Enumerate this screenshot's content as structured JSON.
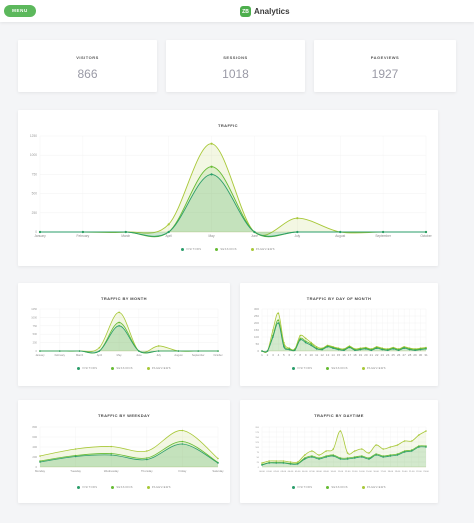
{
  "header": {
    "menu_label": "MENU",
    "logo_text": "ZB",
    "title": "Analytics"
  },
  "stats": [
    {
      "label": "VISITORS",
      "value": "866"
    },
    {
      "label": "SESSIONS",
      "value": "1018"
    },
    {
      "label": "PAGEVIEWS",
      "value": "1927"
    }
  ],
  "colors": {
    "visitors": "#2a9d6a",
    "sessions": "#66bb33",
    "pageviews": "#a8c838",
    "accent": "#5cb85c"
  },
  "legend": [
    "VISITORS",
    "SESSIONS",
    "PAGEVIEWS"
  ],
  "chart_data": [
    {
      "type": "area",
      "title": "TRAFFIC",
      "categories": [
        "January",
        "February",
        "March",
        "April",
        "May",
        "June",
        "July",
        "August",
        "September",
        "October"
      ],
      "ylim": [
        0,
        1250
      ],
      "yticks": [
        "0",
        "250",
        "500",
        "750",
        "1000",
        "1250"
      ],
      "series": [
        {
          "name": "VISITORS",
          "values": [
            0,
            0,
            0,
            0,
            750,
            0,
            0,
            0,
            0,
            0
          ]
        },
        {
          "name": "SESSIONS",
          "values": [
            0,
            0,
            0,
            0,
            850,
            0,
            0,
            0,
            0,
            0
          ]
        },
        {
          "name": "PAGEVIEWS",
          "values": [
            0,
            0,
            0,
            100,
            1150,
            0,
            180,
            0,
            0,
            0
          ]
        }
      ]
    },
    {
      "type": "area",
      "title": "TRAFFIC BY MONTH",
      "categories": [
        "January",
        "February",
        "March",
        "April",
        "May",
        "June",
        "July",
        "August",
        "September",
        "October"
      ],
      "ylim": [
        0,
        1250
      ],
      "yticks": [
        "0",
        "250",
        "500",
        "750",
        "1000",
        "1250"
      ],
      "series": [
        {
          "name": "VISITORS",
          "values": [
            0,
            0,
            0,
            0,
            750,
            0,
            0,
            0,
            0,
            0
          ]
        },
        {
          "name": "SESSIONS",
          "values": [
            0,
            0,
            0,
            0,
            850,
            0,
            0,
            0,
            0,
            0
          ]
        },
        {
          "name": "PAGEVIEWS",
          "values": [
            0,
            0,
            0,
            100,
            1150,
            0,
            150,
            0,
            0,
            0
          ]
        }
      ]
    },
    {
      "type": "line",
      "title": "TRAFFIC BY DAY OF MONTH",
      "categories": [
        "1",
        "2",
        "3",
        "4",
        "5",
        "6",
        "7",
        "8",
        "9",
        "10",
        "11",
        "12",
        "13",
        "14",
        "15",
        "16",
        "17",
        "18",
        "19",
        "20",
        "21",
        "22",
        "23",
        "24",
        "25",
        "26",
        "27",
        "28",
        "29",
        "30",
        "31"
      ],
      "ylim": [
        0,
        300
      ],
      "yticks": [
        "0",
        "50",
        "100",
        "150",
        "200",
        "250",
        "300"
      ],
      "series": [
        {
          "name": "VISITORS",
          "values": [
            0,
            0,
            100,
            200,
            30,
            10,
            5,
            80,
            60,
            40,
            15,
            10,
            30,
            20,
            10,
            5,
            25,
            5,
            10,
            15,
            5,
            20,
            10,
            5,
            15,
            5,
            20,
            10,
            5,
            10,
            15
          ]
        },
        {
          "name": "SESSIONS",
          "values": [
            0,
            0,
            110,
            220,
            40,
            15,
            10,
            90,
            70,
            50,
            20,
            15,
            35,
            25,
            15,
            10,
            30,
            10,
            15,
            20,
            10,
            25,
            15,
            10,
            20,
            10,
            25,
            15,
            10,
            15,
            20
          ]
        },
        {
          "name": "PAGEVIEWS",
          "values": [
            0,
            0,
            150,
            270,
            60,
            20,
            15,
            110,
            90,
            60,
            30,
            20,
            40,
            30,
            20,
            15,
            35,
            15,
            20,
            25,
            15,
            30,
            20,
            15,
            25,
            15,
            30,
            20,
            15,
            20,
            25
          ]
        }
      ]
    },
    {
      "type": "area",
      "title": "TRAFFIC BY WEEKDAY",
      "categories": [
        "Monday",
        "Tuesday",
        "Wednesday",
        "Thursday",
        "Friday",
        "Saturday"
      ],
      "ylim": [
        0,
        800
      ],
      "yticks": [
        "0",
        "200",
        "400",
        "600",
        "800"
      ],
      "series": [
        {
          "name": "VISITORS",
          "values": [
            100,
            210,
            240,
            150,
            460,
            80
          ]
        },
        {
          "name": "SESSIONS",
          "values": [
            120,
            230,
            270,
            180,
            510,
            90
          ]
        },
        {
          "name": "PAGEVIEWS",
          "values": [
            220,
            360,
            410,
            320,
            730,
            170
          ]
        }
      ]
    },
    {
      "type": "line",
      "title": "TRAFFIC BY DAYTIME",
      "categories": [
        "00:00",
        "01:00",
        "02:00",
        "03:00",
        "04:00",
        "05:00",
        "06:00",
        "07:00",
        "08:00",
        "09:00",
        "10:00",
        "11:00",
        "12:00",
        "13:00",
        "14:00",
        "15:00",
        "16:00",
        "17:00",
        "18:00",
        "19:00",
        "20:00",
        "21:00",
        "22:00",
        "23:00"
      ],
      "ylim": [
        0,
        200
      ],
      "yticks": [
        "0",
        "25",
        "50",
        "75",
        "100",
        "125",
        "150",
        "175",
        "200"
      ],
      "series": [
        {
          "name": "VISITORS",
          "values": [
            10,
            20,
            20,
            20,
            15,
            15,
            40,
            50,
            40,
            50,
            55,
            40,
            40,
            45,
            50,
            40,
            60,
            50,
            55,
            60,
            75,
            80,
            100,
            100
          ]
        },
        {
          "name": "SESSIONS",
          "values": [
            12,
            22,
            22,
            22,
            18,
            18,
            45,
            55,
            45,
            55,
            60,
            45,
            45,
            50,
            55,
            45,
            65,
            55,
            60,
            65,
            80,
            85,
            105,
            105
          ]
        },
        {
          "name": "PAGEVIEWS",
          "values": [
            20,
            30,
            30,
            30,
            25,
            25,
            60,
            80,
            60,
            80,
            90,
            180,
            70,
            80,
            90,
            70,
            110,
            90,
            100,
            110,
            130,
            130,
            160,
            180
          ]
        }
      ]
    }
  ]
}
